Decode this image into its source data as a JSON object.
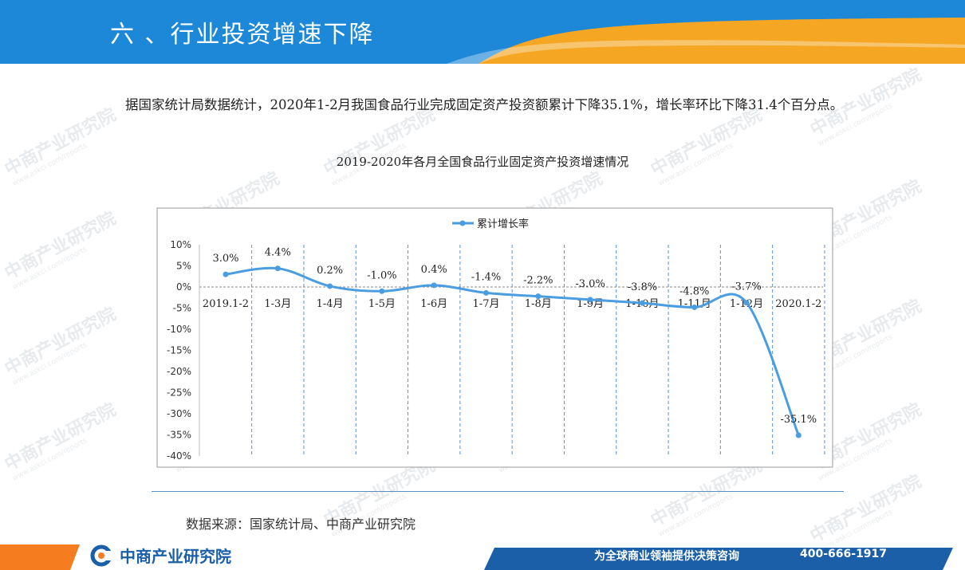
{
  "header": {
    "title": "六 、行业投资增速下降"
  },
  "paragraph": "据国家统计局数据统计，2020年1-2月我国食品行业完成固定资产投资额累计下降35.1%，增长率环比下降31.4个百分点。",
  "chart_title": "2019-2020年各月全国食品行业固定资产投资增速情况",
  "chart_data": {
    "type": "line",
    "title": "2019-2020年各月全国食品行业固定资产投资增速情况",
    "categories": [
      "2019.1-2",
      "1-3月",
      "1-4月",
      "1-5月",
      "1-6月",
      "1-7月",
      "1-8月",
      "1-9月",
      "1-10月",
      "1-11月",
      "1-12月",
      "2020.1-2"
    ],
    "series": [
      {
        "name": "累计增长率",
        "values": [
          3.0,
          4.4,
          0.2,
          -1.0,
          0.4,
          -1.4,
          -2.2,
          -3.0,
          -3.8,
          -4.8,
          -3.7,
          -35.1
        ]
      }
    ],
    "data_labels": [
      "3.0%",
      "4.4%",
      "0.2%",
      "-1.0%",
      "0.4%",
      "-1.4%",
      "-2.2%",
      "-3.0%",
      "-3.8%",
      "-4.8%",
      "-3.7%",
      "-35.1%"
    ],
    "y_ticks": [
      "10%",
      "5%",
      "0%",
      "-5%",
      "-10%",
      "-15%",
      "-20%",
      "-25%",
      "-30%",
      "-35%",
      "-40%"
    ],
    "ylim": [
      -40,
      10
    ],
    "legend_position": "top",
    "line_color": "#4a9de0"
  },
  "source": "数据来源：国家统计局、中商产业研究院",
  "footer": {
    "logo_text": "中商产业研究院",
    "slogan": "为全球商业领袖提供决策咨询",
    "phone": "400-666-1917"
  },
  "watermark": {
    "cn": "中商产业研究院",
    "en": "www.askci.com/reports"
  },
  "colors": {
    "header_blue": "#1e88d8",
    "header_orange": "#f5a623",
    "footer_blue": "#1a5fa8"
  }
}
